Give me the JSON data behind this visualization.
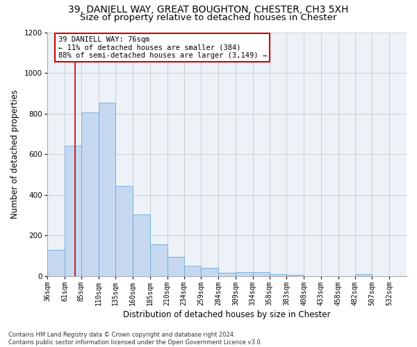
{
  "title_line1": "39, DANIELL WAY, GREAT BOUGHTON, CHESTER, CH3 5XH",
  "title_line2": "Size of property relative to detached houses in Chester",
  "xlabel": "Distribution of detached houses by size in Chester",
  "ylabel": "Number of detached properties",
  "footnote": "Contains HM Land Registry data © Crown copyright and database right 2024.\nContains public sector information licensed under the Open Government Licence v3.0.",
  "annotation_title": "39 DANIELL WAY: 76sqm",
  "annotation_line1": "← 11% of detached houses are smaller (384)",
  "annotation_line2": "88% of semi-detached houses are larger (3,149) →",
  "property_size_sqm": 76,
  "bar_left_edges": [
    36,
    61,
    85,
    110,
    135,
    160,
    185,
    210,
    234,
    259,
    284,
    309,
    334,
    358,
    383,
    408,
    433,
    458,
    482,
    507,
    532
  ],
  "bar_values": [
    130,
    640,
    805,
    855,
    445,
    305,
    155,
    95,
    50,
    40,
    15,
    20,
    20,
    10,
    5,
    0,
    0,
    0,
    10,
    0,
    0
  ],
  "bar_widths": [
    25,
    24,
    25,
    25,
    25,
    25,
    25,
    24,
    25,
    25,
    25,
    25,
    24,
    25,
    25,
    25,
    25,
    24,
    25,
    25,
    25
  ],
  "bar_color": "#c5d8f0",
  "bar_edgecolor": "#6aaad4",
  "vline_color": "#cc0000",
  "vline_x": 76,
  "ylim": [
    0,
    1200
  ],
  "yticks": [
    0,
    200,
    400,
    600,
    800,
    1000,
    1200
  ],
  "background_color": "#ffffff",
  "plot_bg_color": "#edf2f9",
  "grid_color": "#c8c8c8",
  "title_fontsize": 10,
  "subtitle_fontsize": 9.5,
  "tick_label_fontsize": 7,
  "axis_label_fontsize": 8.5,
  "annotation_fontsize": 7.5,
  "footnote_fontsize": 6
}
